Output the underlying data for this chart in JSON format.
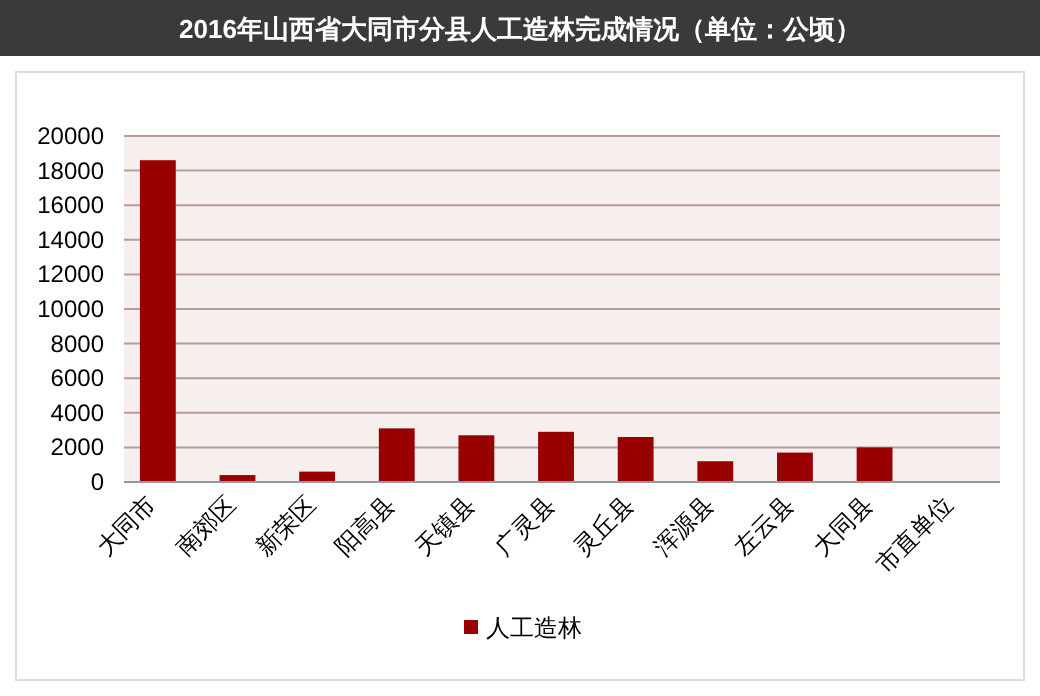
{
  "chart_data": {
    "type": "bar",
    "title": "2016年山西省大同市分县人工造林完成情况（单位：公顷）",
    "categories": [
      "大同市",
      "南郊区",
      "新荣区",
      "阳高县",
      "天镇县",
      "广灵县",
      "灵丘县",
      "浑源县",
      "左云县",
      "大同县",
      "市直单位"
    ],
    "series": [
      {
        "name": "人工造林",
        "color": "#990000",
        "values": [
          18600,
          400,
          600,
          3100,
          2700,
          2900,
          2600,
          1200,
          1700,
          2000,
          0
        ]
      }
    ],
    "ylim": [
      0,
      20000
    ],
    "yticks": [
      0,
      2000,
      4000,
      6000,
      8000,
      10000,
      12000,
      14000,
      16000,
      18000,
      20000
    ],
    "grid": "y",
    "legend": "bottom"
  }
}
